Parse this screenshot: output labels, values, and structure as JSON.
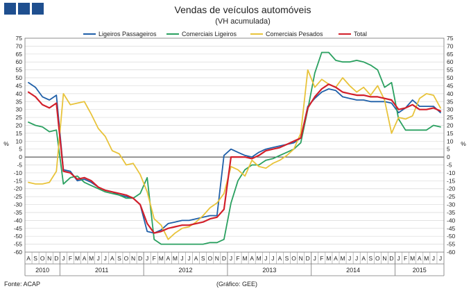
{
  "logo": {
    "icon": "three-square-logo-icon",
    "color": "#1f4f8f"
  },
  "footer": {
    "source": "Fonte: ACAP",
    "graphic": "(Gráfico: GEE)"
  },
  "chart_data": {
    "type": "line",
    "title": "Vendas de veículos automóveis",
    "subtitle": "(VH acumulada)",
    "ylabel_left": "%",
    "ylabel_right": "%",
    "ylim": [
      -60,
      75
    ],
    "yticks": [
      -60,
      -55,
      -50,
      -45,
      -40,
      -35,
      -30,
      -25,
      -20,
      -15,
      -10,
      -5,
      0,
      5,
      10,
      15,
      20,
      25,
      30,
      35,
      40,
      45,
      50,
      55,
      60,
      65,
      70,
      75
    ],
    "grid": true,
    "legend_position": "top",
    "months": [
      "A",
      "S",
      "O",
      "N",
      "D",
      "J",
      "F",
      "M",
      "A",
      "M",
      "J",
      "J",
      "A",
      "S",
      "O",
      "N",
      "D",
      "J",
      "F",
      "M",
      "A",
      "M",
      "J",
      "J",
      "A",
      "S",
      "O",
      "N",
      "D",
      "J",
      "F",
      "M",
      "A",
      "M",
      "J",
      "J",
      "A",
      "S",
      "O",
      "N",
      "D",
      "J",
      "F",
      "M",
      "A",
      "M",
      "J",
      "J",
      "A",
      "S",
      "O",
      "N",
      "D",
      "J",
      "F",
      "M",
      "A",
      "M",
      "J",
      "J"
    ],
    "years": [
      {
        "label": "2010",
        "start": 0,
        "end": 4
      },
      {
        "label": "2011",
        "start": 5,
        "end": 16
      },
      {
        "label": "2012",
        "start": 17,
        "end": 28
      },
      {
        "label": "2013",
        "start": 29,
        "end": 40
      },
      {
        "label": "2014",
        "start": 41,
        "end": 52
      },
      {
        "label": "2015",
        "start": 53,
        "end": 59
      }
    ],
    "series": [
      {
        "name": "Ligeiros Passageiros",
        "color": "#1f5fa8",
        "values": [
          47,
          44,
          38,
          36,
          39,
          -8,
          -9,
          -15,
          -14,
          -16,
          -19,
          -21,
          -22,
          -24,
          -25,
          -26,
          -30,
          -47,
          -48,
          -46,
          -42,
          -41,
          -40,
          -40,
          -39,
          -38,
          -37,
          -37,
          1,
          5,
          3,
          1,
          0,
          3,
          5,
          6,
          7,
          8,
          9,
          12,
          32,
          37,
          41,
          43,
          42,
          38,
          37,
          36,
          36,
          35,
          35,
          35,
          34,
          28,
          31,
          36,
          32,
          32,
          32,
          28
        ]
      },
      {
        "name": "Comerciais Ligeiros",
        "color": "#2aa060",
        "values": [
          22,
          20,
          19,
          16,
          17,
          -17,
          -13,
          -12,
          -16,
          -18,
          -20,
          -22,
          -23,
          -24,
          -26,
          -26,
          -23,
          -13,
          -52,
          -55,
          -55,
          -55,
          -55,
          -55,
          -55,
          -55,
          -54,
          -54,
          -52,
          -29,
          -15,
          -8,
          -5,
          -5,
          -2,
          -1,
          1,
          3,
          5,
          9,
          30,
          53,
          66,
          66,
          61,
          60,
          60,
          61,
          60,
          58,
          55,
          44,
          47,
          24,
          17,
          17,
          17,
          17,
          20,
          19
        ]
      },
      {
        "name": "Comerciais Pesados",
        "color": "#e8c33a",
        "values": [
          -16,
          -17,
          -17,
          -16,
          -9,
          40,
          33,
          34,
          35,
          27,
          18,
          13,
          4,
          2,
          -5,
          -4,
          -11,
          -22,
          -39,
          -43,
          -52,
          -48,
          -45,
          -44,
          -41,
          -37,
          -32,
          -29,
          -23,
          -6,
          -8,
          -12,
          -2,
          -6,
          -7,
          -4,
          -2,
          1,
          5,
          15,
          55,
          44,
          49,
          46,
          44,
          50,
          45,
          41,
          44,
          39,
          45,
          36,
          15,
          25,
          24,
          26,
          37,
          40,
          39,
          31
        ]
      },
      {
        "name": "Total",
        "color": "#d21f2a",
        "values": [
          41,
          38,
          33,
          31,
          34,
          -9,
          -10,
          -14,
          -13,
          -15,
          -19,
          -21,
          -22,
          -23,
          -24,
          -26,
          -30,
          -42,
          -48,
          -47,
          -45,
          -44,
          -43,
          -43,
          -42,
          -41,
          -39,
          -38,
          -33,
          0,
          0,
          0,
          -1,
          1,
          4,
          5,
          6,
          8,
          10,
          12,
          31,
          38,
          43,
          46,
          44,
          41,
          40,
          39,
          39,
          38,
          38,
          37,
          36,
          30,
          31,
          33,
          30,
          30,
          31,
          29
        ]
      }
    ]
  }
}
